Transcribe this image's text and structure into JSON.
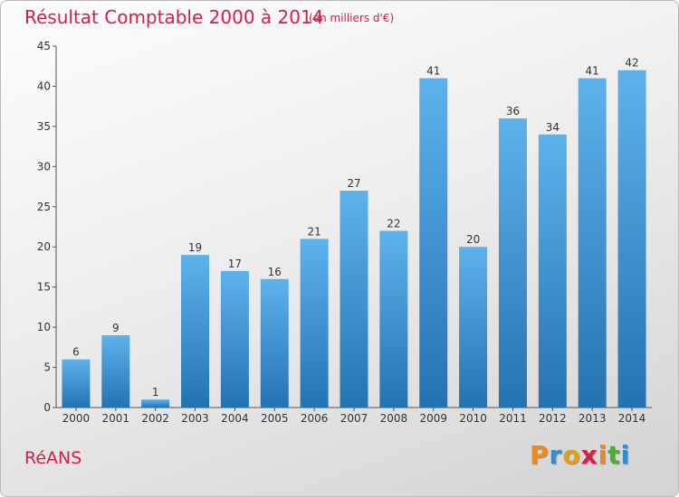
{
  "header": {
    "title": "Résultat Comptable 2000 à 2014",
    "subtitle": "(en milliers d'€)"
  },
  "footer": {
    "place_name": "RéANS",
    "logo_text": "Proxiti"
  },
  "colors": {
    "title": "#d0204c",
    "bar_top": "#5eb2ec",
    "bar_bottom": "#2473b1",
    "logo_letters": [
      "#f08a1c",
      "#2d8fd6",
      "#e0a21a",
      "#d0204c",
      "#f08a1c",
      "#56a83a",
      "#2d8fd6"
    ]
  },
  "chart_data": {
    "type": "bar",
    "title": "Résultat Comptable 2000 à 2014",
    "subtitle": "(en milliers d'€)",
    "categories": [
      "2000",
      "2001",
      "2002",
      "2003",
      "2004",
      "2005",
      "2006",
      "2007",
      "2008",
      "2009",
      "2010",
      "2011",
      "2012",
      "2013",
      "2014"
    ],
    "values": [
      6,
      9,
      1,
      19,
      17,
      16,
      21,
      27,
      22,
      41,
      20,
      36,
      34,
      41,
      42
    ],
    "ylim": [
      0,
      45
    ],
    "yticks": [
      0,
      5,
      10,
      15,
      20,
      25,
      30,
      35,
      40,
      45
    ],
    "grid": false,
    "legend": "none",
    "data_labels": true
  }
}
